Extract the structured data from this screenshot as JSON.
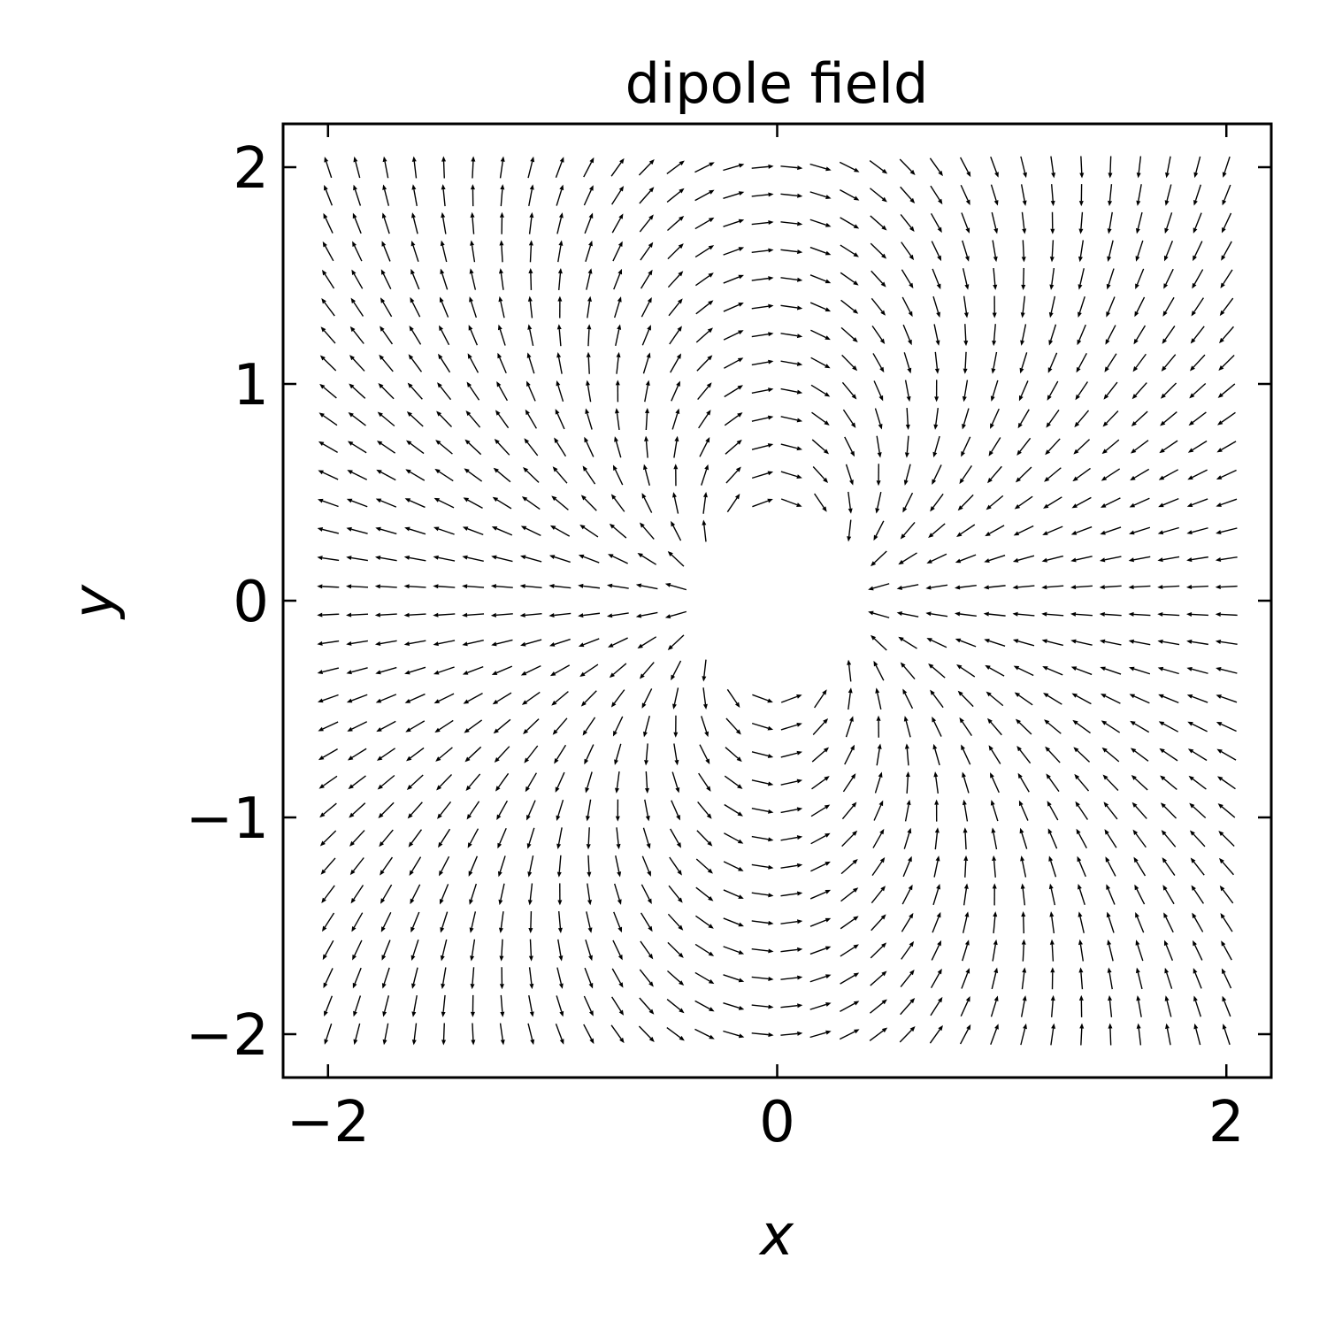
{
  "chart_data": {
    "type": "quiver",
    "title": "dipole field",
    "xlabel": "x",
    "ylabel": "y",
    "xlim": [
      -2.2,
      2.2
    ],
    "ylim": [
      -2.2,
      2.2
    ],
    "xticks": [
      -2,
      0,
      2
    ],
    "xtick_labels": [
      "−2",
      "0",
      "2"
    ],
    "yticks": [
      -2,
      -1,
      0,
      1,
      2
    ],
    "ytick_labels": [
      "−2",
      "−1",
      "0",
      "1",
      "2"
    ],
    "grid": false,
    "field": {
      "kind": "electric dipole, normalized direction",
      "positive_charge": [
        -0.2,
        0
      ],
      "negative_charge": [
        0.2,
        0
      ],
      "grid_x": {
        "start": -2.0,
        "stop": 2.0,
        "count": 32
      },
      "grid_y": {
        "start": -2.0,
        "stop": 2.0,
        "count": 32
      },
      "masked_radius": 0.4,
      "arrow_color": "#000000"
    }
  }
}
